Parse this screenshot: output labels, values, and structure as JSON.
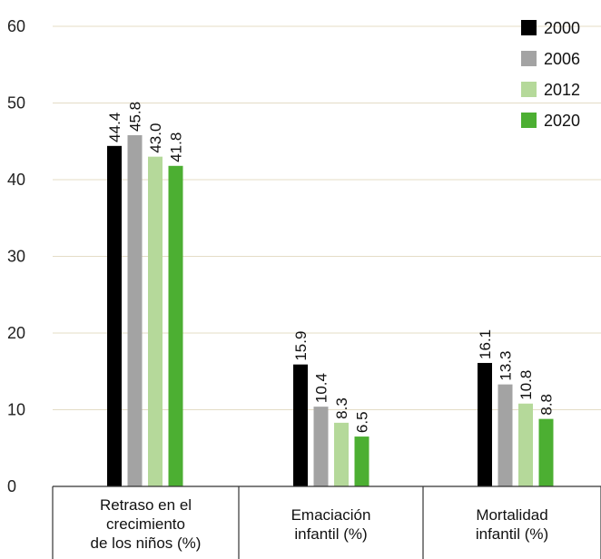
{
  "chart_data": {
    "type": "bar",
    "title": "",
    "xlabel": "",
    "ylabel": "",
    "ylim": [
      0,
      60
    ],
    "yticks": [
      0,
      10,
      20,
      30,
      40,
      50,
      60
    ],
    "grid": true,
    "legend_position": "top-right",
    "categories": [
      [
        "Retraso en el",
        "crecimiento",
        "de los niños (%)"
      ],
      [
        "Emaciación",
        "infantil (%)"
      ],
      [
        "Mortalidad",
        "infantil (%)"
      ]
    ],
    "series": [
      {
        "name": "2000",
        "color": "#000000",
        "values": [
          44.4,
          15.9,
          16.1
        ],
        "labels": [
          "44.4",
          "15.9",
          "16.1"
        ]
      },
      {
        "name": "2006",
        "color": "#a3a3a3",
        "values": [
          45.8,
          10.4,
          13.3
        ],
        "labels": [
          "45.8",
          "10.4",
          "13.3"
        ]
      },
      {
        "name": "2012",
        "color": "#b5d99a",
        "values": [
          43.0,
          8.3,
          10.8
        ],
        "labels": [
          "43.0",
          "8.3",
          "10.8"
        ]
      },
      {
        "name": "2020",
        "color": "#4caf32",
        "values": [
          41.8,
          6.5,
          8.8
        ],
        "labels": [
          "41.8",
          "6.5",
          "8.8"
        ]
      }
    ]
  }
}
